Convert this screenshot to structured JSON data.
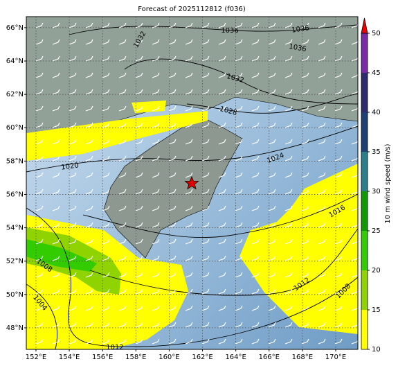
{
  "map": {
    "title": "Forecast of 2025112812 (f036)",
    "xlim": [
      151.42,
      171.33
    ],
    "ylim": [
      46.71,
      66.66
    ],
    "xticks": [
      {
        "value": 152,
        "label": "152°E"
      },
      {
        "value": 154,
        "label": "154°E"
      },
      {
        "value": 156,
        "label": "156°E"
      },
      {
        "value": 158,
        "label": "158°E"
      },
      {
        "value": 160,
        "label": "160°E"
      },
      {
        "value": 162,
        "label": "162°E"
      },
      {
        "value": 164,
        "label": "164°E"
      },
      {
        "value": 166,
        "label": "166°E"
      },
      {
        "value": 168,
        "label": "168°E"
      },
      {
        "value": 170,
        "label": "170°E"
      }
    ],
    "yticks": [
      {
        "value": 48,
        "label": "48°N"
      },
      {
        "value": 50,
        "label": "50°N"
      },
      {
        "value": 52,
        "label": "52°N"
      },
      {
        "value": 54,
        "label": "54°N"
      },
      {
        "value": 56,
        "label": "56°N"
      },
      {
        "value": 58,
        "label": "58°N"
      },
      {
        "value": 60,
        "label": "60°N"
      },
      {
        "value": 62,
        "label": "62°N"
      },
      {
        "value": 64,
        "label": "64°N"
      },
      {
        "value": 66,
        "label": "66°N"
      }
    ],
    "contour_labels": [
      1036,
      1036,
      1036,
      1032,
      1032,
      1028,
      1024,
      1020,
      1016,
      1012,
      1008,
      1008,
      1004,
      1012
    ],
    "colorbar": {
      "label": "10 m wind speed (m/s)",
      "ticks": [
        10,
        15,
        20,
        25,
        30,
        35,
        40,
        45,
        50
      ],
      "colors": [
        "#ffff00",
        "#8fd400",
        "#33cc00",
        "#119900",
        "#2a7f8a",
        "#1f3f75",
        "#2e2a6e",
        "#7a2aa8"
      ],
      "extend_color": "#ee0000"
    }
  }
}
